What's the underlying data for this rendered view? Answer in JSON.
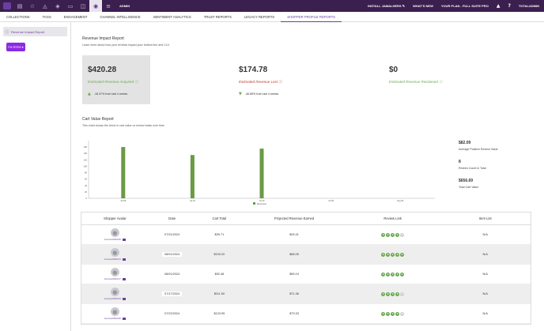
{
  "topbar": {
    "icons": [
      "brand-icon",
      "list-icon",
      "star-icon",
      "chart-icon",
      "bag-icon",
      "message-icon",
      "tag-icon",
      "eye-icon",
      "menu-icon"
    ],
    "glyphs": [
      "",
      "▤",
      "☆",
      "◬",
      "◈",
      "▭",
      "◫",
      "◉",
      "≡"
    ],
    "page_label": "ADMIN",
    "install": "INSTALL JAMALHERS",
    "whats_new": "WHAT'S NEW",
    "plan": "YOUR PLAN - FULL SUITE PRO",
    "user": "TOTALADMIN"
  },
  "subnav": {
    "tabs": [
      "COLLECTIONS",
      "TAGS",
      "ENGAGEMENT",
      "CHANNEL INTELLIGENCE",
      "SENTIMENT ANALYTICS",
      "TRUST REPORTS",
      "LEGACY REPORTS",
      "SHOPPER PROFILE REPORTS"
    ],
    "active_index": 7
  },
  "sidebar": {
    "item": "Revenue Impact Report",
    "filters": "FILTERS ▾"
  },
  "revenue": {
    "title": "Revenue Impact Report",
    "subtitle": "Learn more about how your reviews impact your bottom line and CLV.",
    "acquired": {
      "value": "$420.28",
      "label": "Estimated Revenue Acquired",
      "trend": "-18.37% from last 4 weeks",
      "color": "#6aa84f"
    },
    "lost": {
      "value": "$174.78",
      "label": "Estimated Revenue Lost",
      "trend": "-46.85% from last 4 weeks",
      "color": "#c0392b"
    },
    "reclaimed": {
      "value": "$0",
      "label": "Estimated Revenue Reclaimed",
      "color": "#6aa84f"
    }
  },
  "cart": {
    "title": "Cart Value Report",
    "subtitle": "This chart shows the trend in cart value vs review totals over time"
  },
  "chart_data": {
    "type": "bar",
    "categories": [
      "Jul 09",
      "Jul 16",
      "Jul 23",
      "Jul 30",
      "Aug 06"
    ],
    "series": [
      {
        "name": "Revenue",
        "values": [
          160,
          135,
          155,
          0,
          0
        ],
        "color": "#6a9a45"
      }
    ],
    "ylim": [
      0,
      180
    ],
    "yticks": [
      0,
      20,
      40,
      60,
      80,
      100,
      120,
      140,
      160
    ],
    "legend": "bottom"
  },
  "stats": [
    {
      "value": "$82.09",
      "label": "Average Positive Review Value"
    },
    {
      "value": "8",
      "label": "Review Count in Total"
    },
    {
      "value": "$656.69",
      "label": "Total Cart Value"
    }
  ],
  "table": {
    "headers": [
      "Shopper Avatar",
      "Date",
      "Cart Total",
      "Projected Revenue Earned",
      "Review Link",
      "Item List"
    ],
    "rows": [
      {
        "user": "Ancure2362156",
        "date": "07/21/2024",
        "cart": "$39.71",
        "projected": "$25.41",
        "stars": 4,
        "items": "N/A"
      },
      {
        "user": "Ancure2362121",
        "date": "08/01/2024",
        "cart": "$103.20",
        "projected": "$66.05",
        "stars": 5,
        "items": "N/A"
      },
      {
        "user": "Ancure2362147",
        "date": "08/01/2024",
        "cart": "$92.48",
        "projected": "$59.19",
        "stars": 5,
        "items": "N/A"
      },
      {
        "user": "Ancure2362133",
        "date": "07/17/2024",
        "cart": "$111.50",
        "projected": "$71.36",
        "stars": 4,
        "items": "N/A"
      },
      {
        "user": "Ancure2362166",
        "date": "07/22/2024",
        "cart": "$123.95",
        "projected": "$79.33",
        "stars": 4,
        "items": "N/A"
      }
    ]
  }
}
